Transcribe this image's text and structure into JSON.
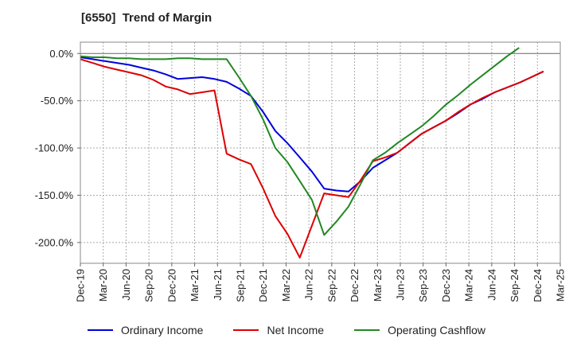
{
  "chart_data": {
    "type": "line",
    "title": "[6550]  Trend of Margin",
    "xlabel": "",
    "ylabel": "",
    "x_ticks": [
      "Dec-19",
      "Mar-20",
      "Jun-20",
      "Sep-20",
      "Dec-20",
      "Mar-21",
      "Jun-21",
      "Sep-21",
      "Dec-21",
      "Mar-22",
      "Jun-22",
      "Sep-22",
      "Dec-22",
      "Mar-23",
      "Jun-23",
      "Sep-23",
      "Dec-23",
      "Mar-24",
      "Jun-24",
      "Sep-24",
      "Dec-24",
      "Mar-25"
    ],
    "y_ticks": [
      "0.0%",
      "-50.0%",
      "-100.0%",
      "-150.0%",
      "-200.0%"
    ],
    "y_tick_values": [
      0,
      -50,
      -100,
      -150,
      -200
    ],
    "ylim": [
      -222,
      12
    ],
    "grid": true,
    "legend_position": "bottom",
    "series": [
      {
        "name": "Ordinary Income",
        "color": "#0000dd",
        "values": [
          -4,
          -6,
          -8,
          -10,
          -12,
          -15,
          -18,
          -22,
          -27,
          -26,
          -25,
          -27,
          -30,
          -37,
          -45,
          -62,
          -82,
          -95,
          -110,
          -125,
          -143,
          -145,
          -146,
          -135,
          -121,
          -113,
          -105,
          -95,
          -85,
          -78,
          -71,
          -63,
          -54,
          -48,
          -41,
          -36,
          -31,
          -25,
          -19
        ]
      },
      {
        "name": "Net Income",
        "color": "#dd0000",
        "values": [
          -6,
          -10,
          -14,
          -17,
          -20,
          -23,
          -28,
          -35,
          -38,
          -43,
          -41,
          -39,
          -106,
          -112,
          -117,
          -143,
          -172,
          -191,
          -216,
          -182,
          -148,
          -150,
          -152,
          -134,
          -114,
          -110,
          -105,
          -95,
          -85,
          -78,
          -71,
          -62,
          -54,
          -47,
          -41,
          -36,
          -31,
          -25,
          -19
        ]
      },
      {
        "name": "Operating Cashflow",
        "color": "#228822",
        "values": [
          -3,
          -4,
          -4,
          -5,
          -5,
          -6,
          -6,
          -6,
          -5,
          -5,
          -6,
          -6,
          -6,
          -25,
          -45,
          -70,
          -100,
          -115,
          -135,
          -155,
          -192,
          -178,
          -162,
          -138,
          -113,
          -105,
          -95,
          -86,
          -77,
          -66,
          -54,
          -44,
          -33,
          -23,
          -13,
          -3,
          6
        ]
      }
    ]
  }
}
